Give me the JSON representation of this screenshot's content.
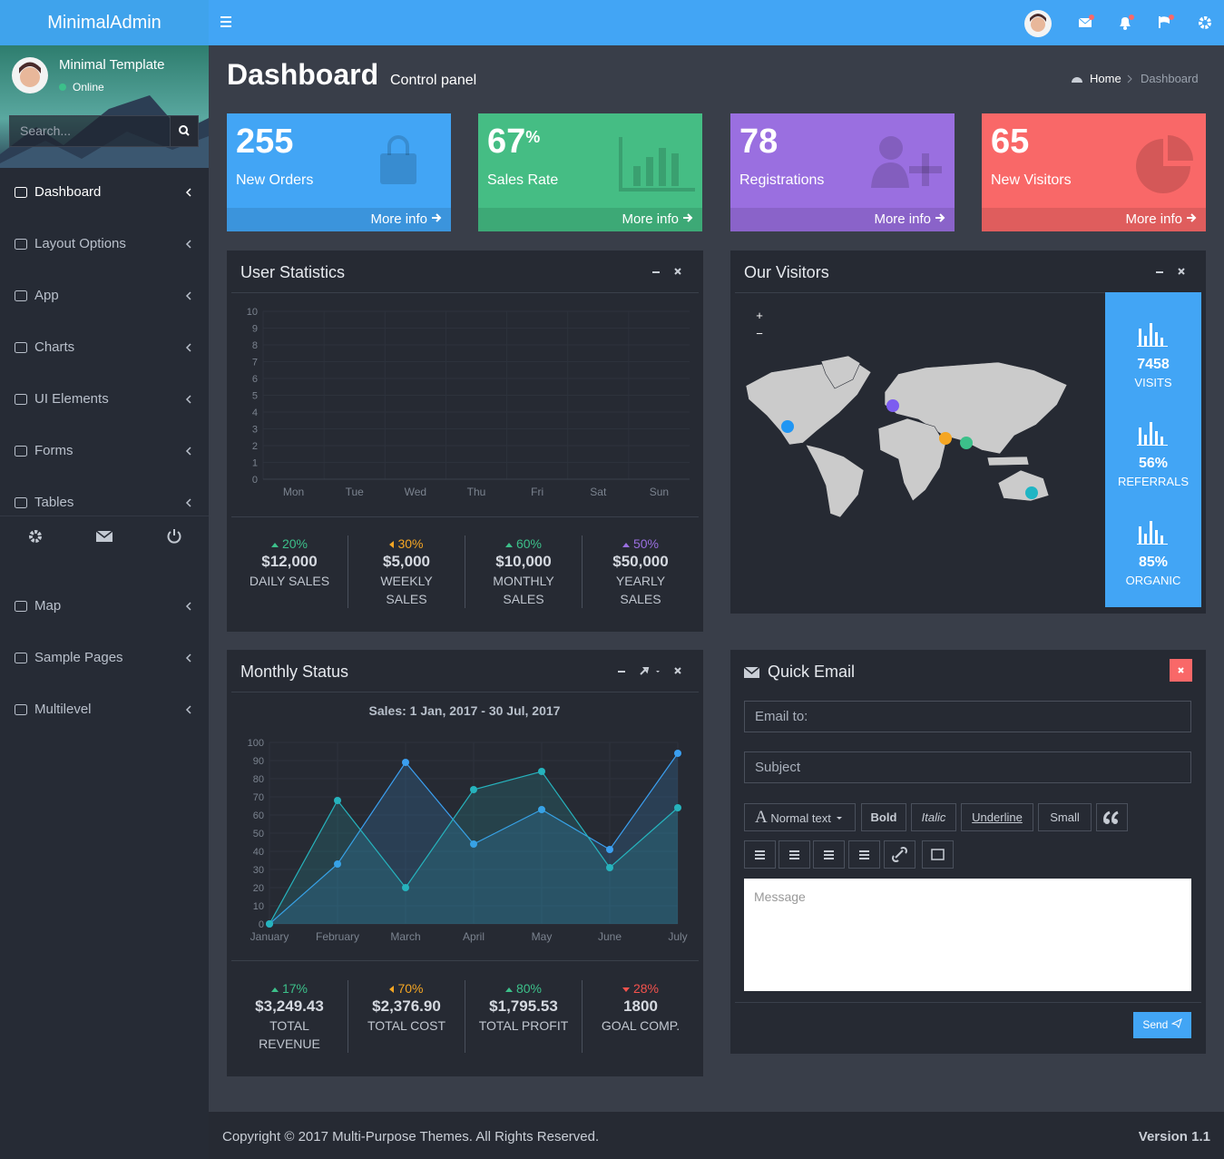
{
  "header": {
    "brand": "MinimalAdmin"
  },
  "sidebar": {
    "user": "Minimal Template",
    "status": "Online",
    "search_placeholder": "Search...",
    "menu": [
      "Dashboard",
      "Layout Options",
      "App",
      "Charts",
      "UI Elements",
      "Forms",
      "Tables",
      "Map",
      "Sample Pages",
      "Multilevel"
    ]
  },
  "page": {
    "title": "Dashboard",
    "subtitle": "Control panel",
    "breadcrumb": [
      "Home",
      "Dashboard"
    ]
  },
  "tiles": [
    {
      "value": 255,
      "label": "New Orders",
      "link": "More info",
      "color": "#42a5f5"
    },
    {
      "value": 67,
      "unit": "%",
      "label": "Sales Rate",
      "link": "More info",
      "color": "#45bd84"
    },
    {
      "value": 78,
      "label": "Registrations",
      "link": "More info",
      "color": "#9a6fe0"
    },
    {
      "value": 65,
      "label": "New Visitors",
      "link": "More info",
      "color": "#f96868"
    }
  ],
  "user_statistics": {
    "title": "User Statistics",
    "chart_data": {
      "type": "bar",
      "categories": [
        "Mon",
        "Tue",
        "Wed",
        "Thu",
        "Fri",
        "Sat",
        "Sun"
      ],
      "ylim": [
        0,
        10
      ],
      "yticks": [
        0,
        1,
        2,
        3,
        4,
        5,
        6,
        7,
        8,
        9,
        10
      ],
      "grid": true
    },
    "stats": [
      {
        "change": "20%",
        "trend": "up",
        "color": "#3cc08a",
        "value": "$12,000",
        "label": "DAILY SALES"
      },
      {
        "change": "30%",
        "trend": "left",
        "color": "#f5a623",
        "value": "$5,000",
        "label": "WEEKLY SALES"
      },
      {
        "change": "60%",
        "trend": "up",
        "color": "#3cc08a",
        "value": "$10,000",
        "label": "MONTHLY SALES"
      },
      {
        "change": "50%",
        "trend": "up",
        "color": "#9a6fe0",
        "value": "$50,000",
        "label": "YEARLY SALES"
      }
    ]
  },
  "visitors": {
    "title": "Our Visitors",
    "zoom": [
      "+",
      "−"
    ],
    "stats": [
      {
        "value": 7458,
        "label": "VISITS"
      },
      {
        "value": "56%",
        "label": "REFERRALS"
      },
      {
        "value": "85%",
        "label": "ORGANIC"
      }
    ]
  },
  "monthly_status": {
    "title": "Monthly Status",
    "chart_data": {
      "type": "line",
      "title": "Sales: 1 Jan, 2017 - 30 Jul, 2017",
      "categories": [
        "January",
        "February",
        "March",
        "April",
        "May",
        "June",
        "July"
      ],
      "series": [
        {
          "color": "#3b9ff0",
          "values": [
            0,
            33,
            89,
            44,
            63,
            41,
            94
          ]
        },
        {
          "color": "#26b3bd",
          "values": [
            0,
            68,
            20,
            74,
            84,
            31,
            64
          ]
        }
      ],
      "ylim": [
        0,
        100
      ],
      "yticks": [
        0,
        10,
        20,
        30,
        40,
        50,
        60,
        70,
        80,
        90,
        100
      ],
      "grid": true
    },
    "stats": [
      {
        "change": "17%",
        "trend": "up",
        "color": "#3cc08a",
        "value": "$3,249.43",
        "label": "TOTAL REVENUE"
      },
      {
        "change": "70%",
        "trend": "left",
        "color": "#f5a623",
        "value": "$2,376.90",
        "label": "TOTAL COST"
      },
      {
        "change": "80%",
        "trend": "up",
        "color": "#3cc08a",
        "value": "$1,795.53",
        "label": "TOTAL PROFIT"
      },
      {
        "change": "28%",
        "trend": "down",
        "color": "#f4524d",
        "value": "1800",
        "label": "GOAL COMP."
      }
    ]
  },
  "quick_email": {
    "title": "Quick Email",
    "fields": [
      "Email to:",
      "Subject"
    ],
    "toolbar": [
      "Normal text",
      "Bold",
      "Italic",
      "Underline",
      "Small"
    ],
    "message_placeholder": "Message",
    "send": "Send"
  },
  "footer": {
    "copyright": "Copyright © 2017 Multi-Purpose Themes. All Rights Reserved.",
    "version": "Version 1.1"
  }
}
